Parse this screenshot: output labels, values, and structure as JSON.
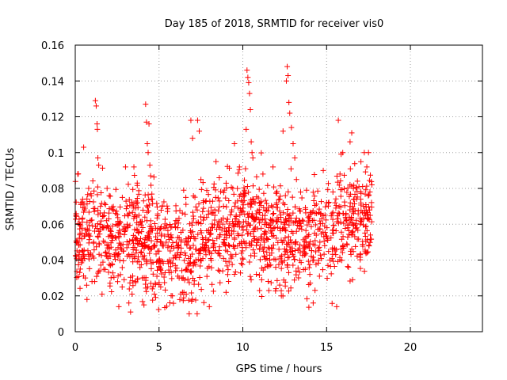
{
  "chart_data": {
    "type": "scatter",
    "title": "Day 185 of 2018, SRMTID for receiver vis0",
    "xlabel": "GPS time / hours",
    "ylabel": "SRMTID / TECUs",
    "xlim": [
      0,
      24.3
    ],
    "ylim": [
      0,
      0.16
    ],
    "xticks": [
      0,
      5,
      10,
      15,
      20
    ],
    "xtick_labels": [
      "0",
      "5",
      "10",
      "15",
      "20"
    ],
    "yticks": [
      0,
      0.02,
      0.04,
      0.06,
      0.08,
      0.1,
      0.12,
      0.14,
      0.16
    ],
    "ytick_labels": [
      "0",
      "0.02",
      "0.04",
      "0.06",
      "0.08",
      "0.1",
      "0.12",
      "0.14",
      "0.16"
    ],
    "grid": true,
    "marker": "plus",
    "series_color": "#ff0000",
    "data_x_range": [
      0,
      17.7
    ],
    "series": [
      {
        "points": [
          [
            0.05,
            0.065
          ],
          [
            0.1,
            0.05
          ],
          [
            0.15,
            0.088
          ],
          [
            0.2,
            0.04
          ],
          [
            0.25,
            0.06
          ],
          [
            0.3,
            0.035
          ],
          [
            0.35,
            0.072
          ],
          [
            0.4,
            0.055
          ],
          [
            0.45,
            0.045
          ],
          [
            0.5,
            0.103
          ],
          [
            0.55,
            0.068
          ],
          [
            0.6,
            0.03
          ],
          [
            0.7,
            0.018
          ],
          [
            0.8,
            0.08
          ],
          [
            0.9,
            0.062
          ],
          [
            1.0,
            0.028
          ],
          [
            1.1,
            0.05
          ],
          [
            1.2,
            0.129
          ],
          [
            1.25,
            0.126
          ],
          [
            1.3,
            0.116
          ],
          [
            1.32,
            0.113
          ],
          [
            1.35,
            0.097
          ],
          [
            1.4,
            0.093
          ],
          [
            1.5,
            0.07
          ],
          [
            1.6,
            0.021
          ],
          [
            1.7,
            0.058
          ],
          [
            1.8,
            0.044
          ],
          [
            1.9,
            0.08
          ],
          [
            2.0,
            0.063
          ],
          [
            2.1,
            0.037
          ],
          [
            2.2,
            0.051
          ],
          [
            2.4,
            0.066
          ],
          [
            2.6,
            0.014
          ],
          [
            2.7,
            0.048
          ],
          [
            2.8,
            0.025
          ],
          [
            3.0,
            0.092
          ],
          [
            3.1,
            0.06
          ],
          [
            3.2,
            0.016
          ],
          [
            3.3,
            0.011
          ],
          [
            3.4,
            0.042
          ],
          [
            3.5,
            0.092
          ],
          [
            3.6,
            0.028
          ],
          [
            3.7,
            0.083
          ],
          [
            3.8,
            0.065
          ],
          [
            3.9,
            0.052
          ],
          [
            4.0,
            0.03
          ],
          [
            4.1,
            0.015
          ],
          [
            4.2,
            0.127
          ],
          [
            4.25,
            0.117
          ],
          [
            4.3,
            0.105
          ],
          [
            4.35,
            0.1
          ],
          [
            4.4,
            0.116
          ],
          [
            4.45,
            0.093
          ],
          [
            4.5,
            0.087
          ],
          [
            4.6,
            0.074
          ],
          [
            4.8,
            0.053
          ],
          [
            5.0,
            0.045
          ],
          [
            5.1,
            0.025
          ],
          [
            5.2,
            0.07
          ],
          [
            5.4,
            0.058
          ],
          [
            5.6,
            0.033
          ],
          [
            5.8,
            0.02
          ],
          [
            6.0,
            0.062
          ],
          [
            6.1,
            0.048
          ],
          [
            6.2,
            0.03
          ],
          [
            6.4,
            0.022
          ],
          [
            6.6,
            0.075
          ],
          [
            6.8,
            0.01
          ],
          [
            6.9,
            0.118
          ],
          [
            7.0,
            0.108
          ],
          [
            7.1,
            0.052
          ],
          [
            7.2,
            0.04
          ],
          [
            7.3,
            0.118
          ],
          [
            7.4,
            0.112
          ],
          [
            7.5,
            0.085
          ],
          [
            7.6,
            0.067
          ],
          [
            7.8,
            0.043
          ],
          [
            8.0,
            0.014
          ],
          [
            8.2,
            0.058
          ],
          [
            8.4,
            0.095
          ],
          [
            8.6,
            0.073
          ],
          [
            8.8,
            0.034
          ],
          [
            9.0,
            0.022
          ],
          [
            9.2,
            0.048
          ],
          [
            9.4,
            0.08
          ],
          [
            9.5,
            0.105
          ],
          [
            9.6,
            0.063
          ],
          [
            9.8,
            0.092
          ],
          [
            10.0,
            0.069
          ],
          [
            10.1,
            0.079
          ],
          [
            10.2,
            0.113
          ],
          [
            10.25,
            0.146
          ],
          [
            10.3,
            0.142
          ],
          [
            10.35,
            0.139
          ],
          [
            10.4,
            0.133
          ],
          [
            10.45,
            0.124
          ],
          [
            10.5,
            0.106
          ],
          [
            10.6,
            0.097
          ],
          [
            10.7,
            0.052
          ],
          [
            10.8,
            0.064
          ],
          [
            11.0,
            0.023
          ],
          [
            11.2,
            0.088
          ],
          [
            11.4,
            0.06
          ],
          [
            11.6,
            0.04
          ],
          [
            11.8,
            0.092
          ],
          [
            12.0,
            0.071
          ],
          [
            12.2,
            0.026
          ],
          [
            12.3,
            0.02
          ],
          [
            12.4,
            0.112
          ],
          [
            12.5,
            0.058
          ],
          [
            12.6,
            0.14
          ],
          [
            12.65,
            0.148
          ],
          [
            12.7,
            0.143
          ],
          [
            12.75,
            0.128
          ],
          [
            12.8,
            0.122
          ],
          [
            12.9,
            0.114
          ],
          [
            13.0,
            0.105
          ],
          [
            13.1,
            0.097
          ],
          [
            13.2,
            0.085
          ],
          [
            13.4,
            0.062
          ],
          [
            13.6,
            0.045
          ],
          [
            13.8,
            0.079
          ],
          [
            14.0,
            0.032
          ],
          [
            14.2,
            0.016
          ],
          [
            14.4,
            0.066
          ],
          [
            14.6,
            0.05
          ],
          [
            14.8,
            0.09
          ],
          [
            15.0,
            0.072
          ],
          [
            15.2,
            0.04
          ],
          [
            15.4,
            0.055
          ],
          [
            15.6,
            0.014
          ],
          [
            15.7,
            0.118
          ],
          [
            15.8,
            0.088
          ],
          [
            16.0,
            0.066
          ],
          [
            16.2,
            0.049
          ],
          [
            16.4,
            0.106
          ],
          [
            16.5,
            0.111
          ],
          [
            16.6,
            0.08
          ],
          [
            16.8,
            0.058
          ],
          [
            17.0,
            0.043
          ],
          [
            17.2,
            0.07
          ],
          [
            17.4,
            0.092
          ],
          [
            17.5,
            0.1
          ],
          [
            17.6,
            0.065
          ],
          [
            17.7,
            0.082
          ]
        ]
      }
    ]
  }
}
